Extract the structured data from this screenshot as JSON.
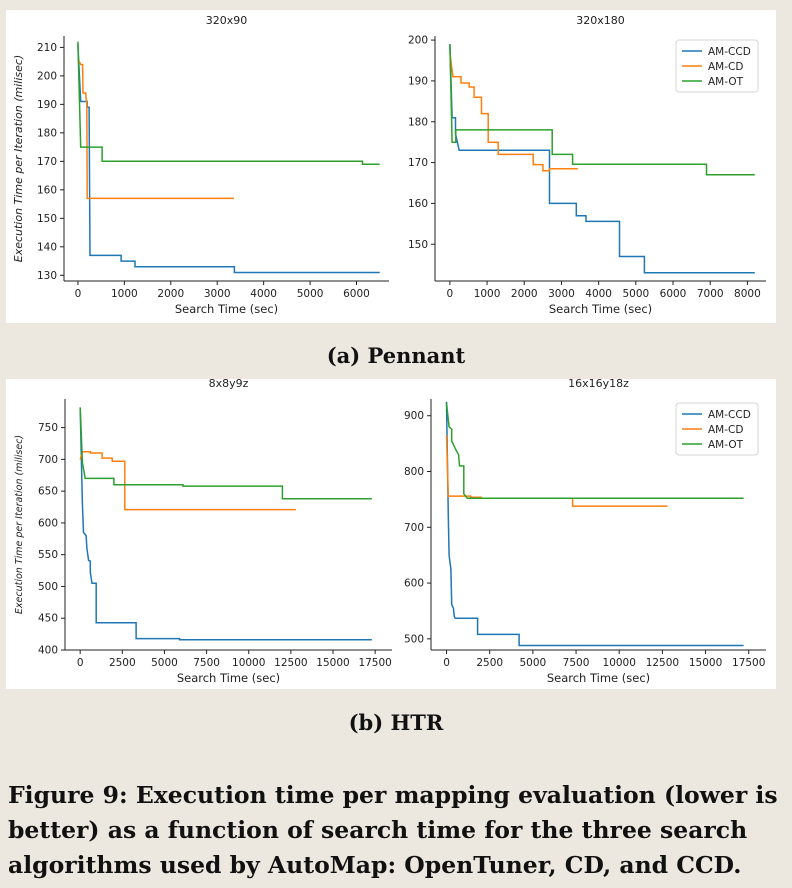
{
  "captions": {
    "pennant": "(a) Pennant",
    "htr": "(b) HTR",
    "figure": "Figure 9: Execution time per mapping evaluation (lower is better) as a function of search time for the three search algorithms used by AutoMap: OpenTuner, CD, and CCD."
  },
  "colors": {
    "AM-CCD": "#1f77b4",
    "AM-CD": "#ff7f0e",
    "AM-OT": "#2ca02c"
  },
  "chart_data": [
    {
      "type": "line",
      "title": "320x90",
      "xlabel": "Search Time (sec)",
      "ylabel": "Execution Time per Iteration (milisec)",
      "xlim": [
        -300,
        6700
      ],
      "ylim": [
        128,
        214
      ],
      "xticks": [
        0,
        1000,
        2000,
        3000,
        4000,
        5000,
        6000
      ],
      "yticks": [
        130,
        140,
        150,
        160,
        170,
        180,
        190,
        200,
        210
      ],
      "legend": false,
      "series": [
        {
          "name": "AM-CCD",
          "points": [
            [
              0,
              211
            ],
            [
              60,
              191
            ],
            [
              200,
              191
            ],
            [
              200,
              189
            ],
            [
              240,
              189
            ],
            [
              260,
              137
            ],
            [
              930,
              137
            ],
            [
              930,
              135
            ],
            [
              1230,
              135
            ],
            [
              1230,
              133
            ],
            [
              3370,
              133
            ],
            [
              3370,
              131
            ],
            [
              6500,
              131
            ]
          ]
        },
        {
          "name": "AM-CD",
          "points": [
            [
              0,
              206
            ],
            [
              60,
              204
            ],
            [
              100,
              204
            ],
            [
              110,
              194
            ],
            [
              170,
              194
            ],
            [
              180,
              191
            ],
            [
              190,
              191
            ],
            [
              200,
              157
            ],
            [
              3360,
              157
            ]
          ]
        },
        {
          "name": "AM-OT",
          "points": [
            [
              0,
              212
            ],
            [
              60,
              175
            ],
            [
              520,
              175
            ],
            [
              520,
              170
            ],
            [
              6130,
              170
            ],
            [
              6130,
              169
            ],
            [
              6500,
              169
            ]
          ]
        }
      ]
    },
    {
      "type": "line",
      "title": "320x180",
      "xlabel": "Search Time (sec)",
      "ylabel": "",
      "xlim": [
        -400,
        8500
      ],
      "ylim": [
        141,
        201
      ],
      "xticks": [
        0,
        1000,
        2000,
        3000,
        4000,
        5000,
        6000,
        7000,
        8000
      ],
      "yticks": [
        150,
        160,
        170,
        180,
        190,
        200
      ],
      "legend": true,
      "legend_position": "top-right",
      "series": [
        {
          "name": "AM-CCD",
          "points": [
            [
              0,
              199
            ],
            [
              60,
              181
            ],
            [
              150,
              181
            ],
            [
              150,
              177
            ],
            [
              250,
              173
            ],
            [
              2680,
              173
            ],
            [
              2680,
              160
            ],
            [
              3400,
              160
            ],
            [
              3400,
              157
            ],
            [
              3660,
              157
            ],
            [
              3660,
              155.6
            ],
            [
              4560,
              155.6
            ],
            [
              4560,
              147
            ],
            [
              5230,
              147
            ],
            [
              5230,
              143
            ],
            [
              8200,
              143
            ]
          ]
        },
        {
          "name": "AM-CD",
          "points": [
            [
              0,
              197
            ],
            [
              80,
              191
            ],
            [
              300,
              191
            ],
            [
              300,
              189.5
            ],
            [
              520,
              189.5
            ],
            [
              520,
              188.5
            ],
            [
              650,
              188.5
            ],
            [
              650,
              186
            ],
            [
              850,
              186
            ],
            [
              850,
              182
            ],
            [
              1030,
              182
            ],
            [
              1030,
              175
            ],
            [
              1300,
              175
            ],
            [
              1300,
              172
            ],
            [
              2240,
              172
            ],
            [
              2240,
              169.5
            ],
            [
              2500,
              169.5
            ],
            [
              2500,
              168
            ],
            [
              2680,
              168
            ],
            [
              2680,
              168.5
            ],
            [
              3440,
              168.5
            ]
          ]
        },
        {
          "name": "AM-OT",
          "points": [
            [
              0,
              199
            ],
            [
              60,
              175
            ],
            [
              160,
              175
            ],
            [
              160,
              178
            ],
            [
              2750,
              178
            ],
            [
              2750,
              172
            ],
            [
              3300,
              172
            ],
            [
              3300,
              169.6
            ],
            [
              6900,
              169.6
            ],
            [
              6900,
              167
            ],
            [
              8200,
              167
            ]
          ]
        }
      ]
    },
    {
      "type": "line",
      "title": "8x8y9z",
      "xlabel": "Search Time (sec)",
      "ylabel": "Execution Time per Iteration (milisec)",
      "xlim": [
        -900,
        18500
      ],
      "ylim": [
        400,
        795
      ],
      "xticks": [
        0,
        2500,
        5000,
        7500,
        10000,
        12500,
        15000,
        17500
      ],
      "yticks": [
        400,
        450,
        500,
        550,
        600,
        650,
        700,
        750
      ],
      "legend": false,
      "series": [
        {
          "name": "AM-CCD",
          "points": [
            [
              0,
              780
            ],
            [
              130,
              630
            ],
            [
              200,
              585
            ],
            [
              350,
              580
            ],
            [
              400,
              560
            ],
            [
              500,
              541
            ],
            [
              600,
              540
            ],
            [
              600,
              522
            ],
            [
              700,
              505
            ],
            [
              950,
              505
            ],
            [
              950,
              443
            ],
            [
              3320,
              443
            ],
            [
              3320,
              418
            ],
            [
              5900,
              418
            ],
            [
              5900,
              416
            ],
            [
              17300,
              416
            ]
          ]
        },
        {
          "name": "AM-CD",
          "points": [
            [
              0,
              700
            ],
            [
              130,
              712
            ],
            [
              600,
              712
            ],
            [
              600,
              710
            ],
            [
              1300,
              710
            ],
            [
              1300,
              702
            ],
            [
              1900,
              702
            ],
            [
              1900,
              697
            ],
            [
              2650,
              697
            ],
            [
              2650,
              621
            ],
            [
              12800,
              621
            ]
          ]
        },
        {
          "name": "AM-OT",
          "points": [
            [
              0,
              782
            ],
            [
              130,
              695
            ],
            [
              300,
              670
            ],
            [
              2000,
              670
            ],
            [
              2000,
              660
            ],
            [
              6100,
              660
            ],
            [
              6100,
              658
            ],
            [
              12000,
              658
            ],
            [
              12000,
              638
            ],
            [
              17300,
              638
            ]
          ]
        }
      ]
    },
    {
      "type": "line",
      "title": "16x16y18z",
      "xlabel": "Search Time (sec)",
      "ylabel": "",
      "xlim": [
        -900,
        18500
      ],
      "ylim": [
        480,
        930
      ],
      "xticks": [
        0,
        2500,
        5000,
        7500,
        10000,
        12500,
        15000,
        17500
      ],
      "yticks": [
        500,
        600,
        700,
        800,
        900
      ],
      "legend": true,
      "legend_position": "top-right",
      "series": [
        {
          "name": "AM-CCD",
          "points": [
            [
              0,
              925
            ],
            [
              100,
              720
            ],
            [
              150,
              650
            ],
            [
              250,
              625
            ],
            [
              300,
              562
            ],
            [
              400,
              555
            ],
            [
              450,
              540
            ],
            [
              500,
              537
            ],
            [
              1800,
              537
            ],
            [
              1800,
              508
            ],
            [
              4200,
              508
            ],
            [
              4200,
              488
            ],
            [
              17200,
              488
            ]
          ]
        },
        {
          "name": "AM-CD",
          "points": [
            [
              0,
              865
            ],
            [
              100,
              756
            ],
            [
              1400,
              756
            ],
            [
              1400,
              754
            ],
            [
              2000,
              754
            ],
            [
              2000,
              752
            ],
            [
              7300,
              752
            ],
            [
              7300,
              738
            ],
            [
              12800,
              738
            ]
          ]
        },
        {
          "name": "AM-OT",
          "points": [
            [
              0,
              923
            ],
            [
              150,
              880
            ],
            [
              300,
              876
            ],
            [
              300,
              855
            ],
            [
              500,
              841
            ],
            [
              700,
              830
            ],
            [
              750,
              810
            ],
            [
              1000,
              810
            ],
            [
              1000,
              760
            ],
            [
              1200,
              752
            ],
            [
              17200,
              752
            ]
          ]
        }
      ]
    }
  ]
}
